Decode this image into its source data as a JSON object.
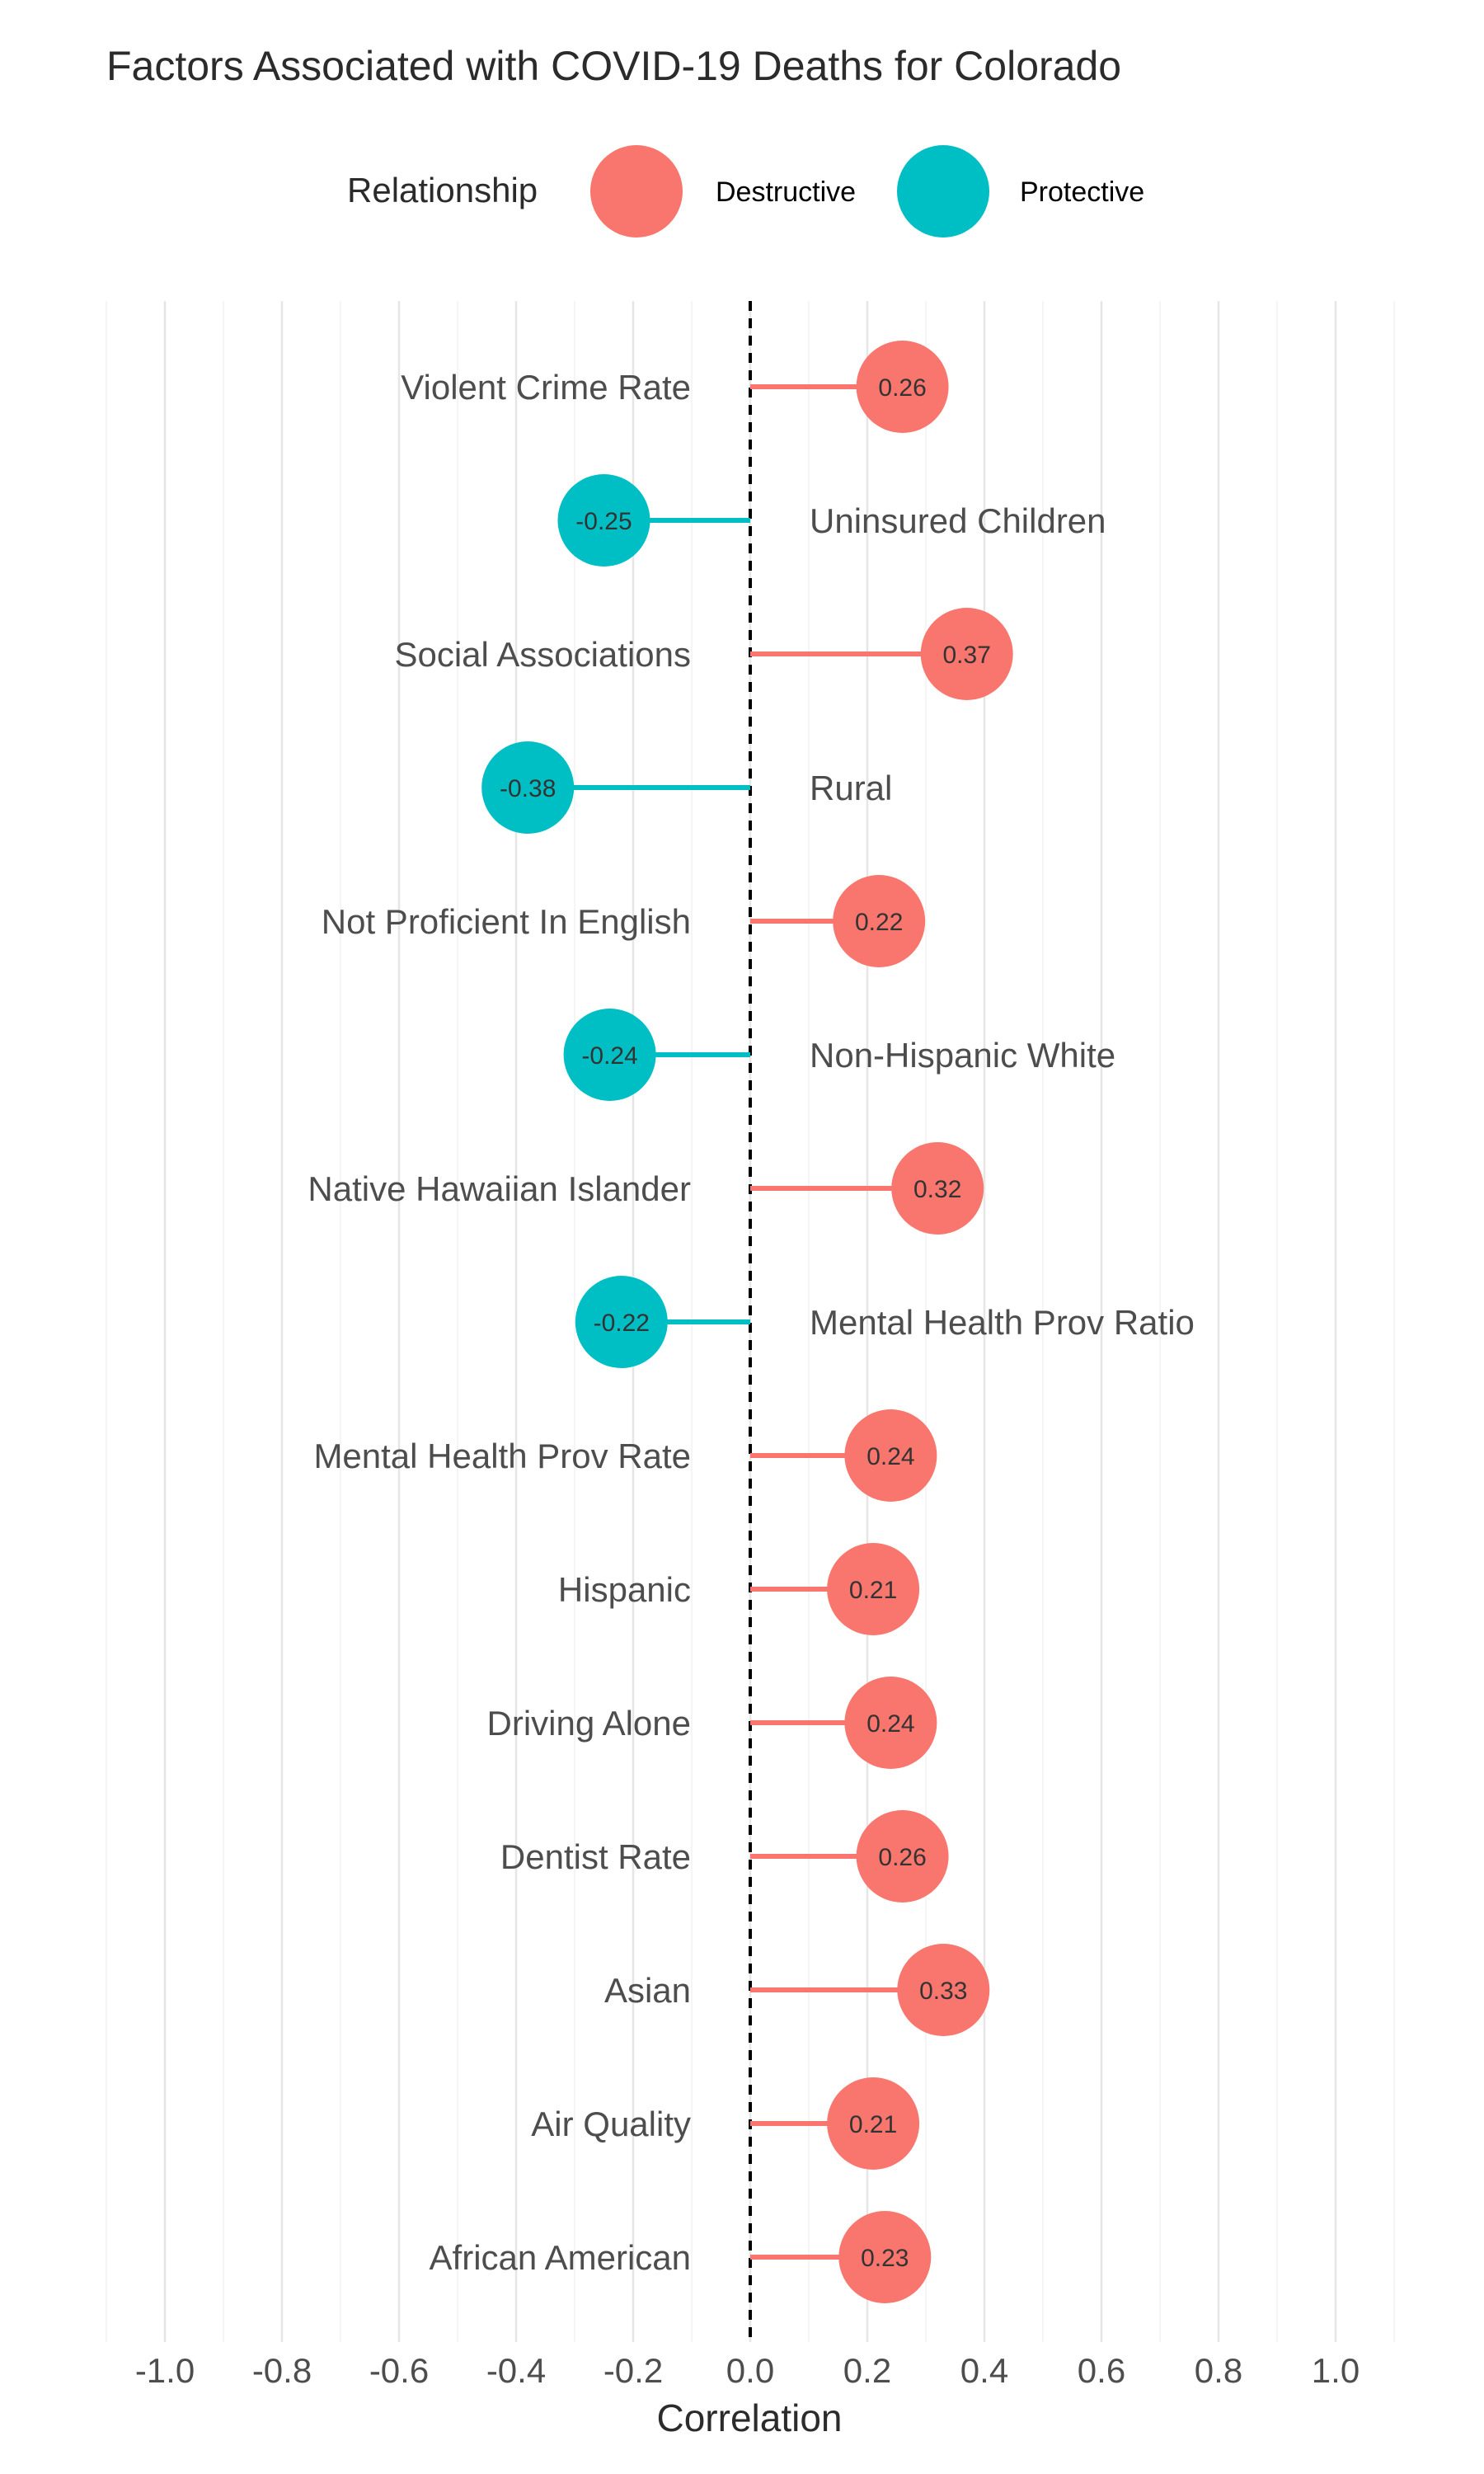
{
  "chart_data": {
    "type": "lollipop",
    "title": "Factors Associated with COVID-19 Deaths for Colorado",
    "xlabel": "Correlation",
    "ylabel": "",
    "xlim": [
      -1.1,
      1.1
    ],
    "x_ticks": [
      -1.0,
      -0.8,
      -0.6,
      -0.4,
      -0.2,
      0.0,
      0.2,
      0.4,
      0.6,
      0.8,
      1.0
    ],
    "x_tick_labels": [
      "-1.0",
      "-0.8",
      "-0.6",
      "-0.4",
      "-0.2",
      "0.0",
      "0.2",
      "0.4",
      "0.6",
      "0.8",
      "1.0"
    ],
    "grid": "vertical",
    "reference_line": 0,
    "legend": {
      "title": "Relationship",
      "position": "top",
      "entries": [
        {
          "label": "Destructive",
          "color": "#F8766D"
        },
        {
          "label": "Protective",
          "color": "#00BFC4"
        }
      ]
    },
    "categories": [
      "Violent Crime Rate",
      "Uninsured Children",
      "Social Associations",
      "Rural",
      "Not Proficient In English",
      "Non-Hispanic White",
      "Native Hawaiian Islander",
      "Mental Health Prov Ratio",
      "Mental Health Prov Rate",
      "Hispanic",
      "Driving Alone",
      "Dentist Rate",
      "Asian",
      "Air Quality",
      "African American"
    ],
    "values": [
      0.26,
      -0.25,
      0.37,
      -0.38,
      0.22,
      -0.24,
      0.32,
      -0.22,
      0.24,
      0.21,
      0.24,
      0.26,
      0.33,
      0.21,
      0.23
    ],
    "value_labels": [
      "0.26",
      "-0.25",
      "0.37",
      "-0.38",
      "0.22",
      "-0.24",
      "0.32",
      "-0.22",
      "0.24",
      "0.21",
      "0.24",
      "0.26",
      "0.33",
      "0.21",
      "0.23"
    ],
    "relationship": [
      "Destructive",
      "Protective",
      "Destructive",
      "Protective",
      "Destructive",
      "Protective",
      "Destructive",
      "Protective",
      "Destructive",
      "Destructive",
      "Destructive",
      "Destructive",
      "Destructive",
      "Destructive",
      "Destructive"
    ]
  }
}
